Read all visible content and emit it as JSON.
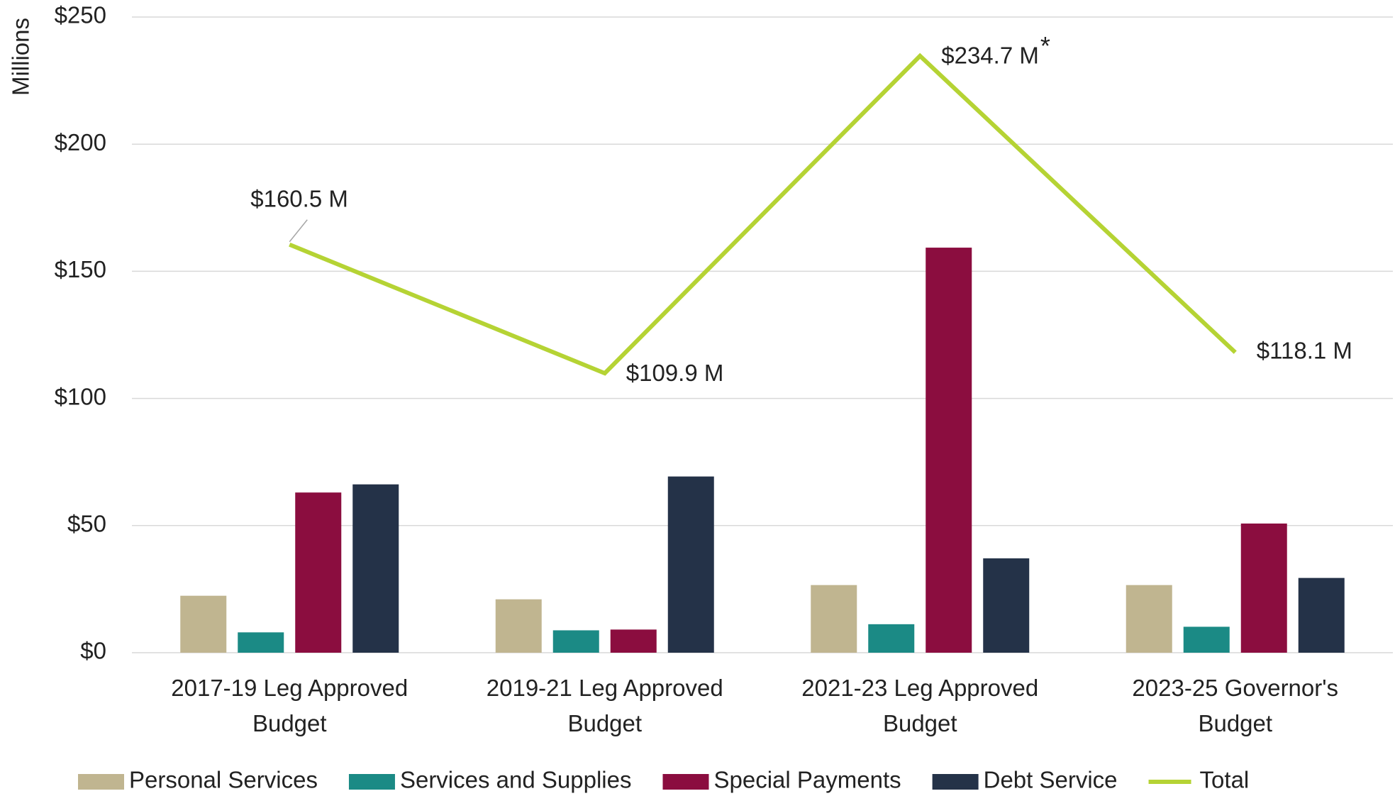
{
  "chart_data": {
    "type": "bar_line",
    "y_label": "Millions",
    "categories": [
      "2017-19 Leg Approved Budget",
      "2019-21 Leg Approved Budget",
      "2021-23 Leg Approved Budget",
      "2023-25 Governor's Budget"
    ],
    "series": [
      {
        "name": "Personal Services",
        "type": "bar",
        "color": "#c0b590",
        "values": [
          22.4,
          21,
          26.6,
          26.6
        ]
      },
      {
        "name": "Services and Supplies",
        "type": "bar",
        "color": "#1b8a85",
        "values": [
          8,
          8.8,
          11.2,
          10.2
        ]
      },
      {
        "name": "Special Payments",
        "type": "bar",
        "color": "#8b0d3f",
        "values": [
          63,
          9.1,
          159.3,
          50.8
        ]
      },
      {
        "name": "Debt Service",
        "type": "bar",
        "color": "#243248",
        "values": [
          66.2,
          69.3,
          37.1,
          29.4
        ]
      },
      {
        "name": "Total",
        "type": "line",
        "color": "#b5d334",
        "values": [
          160.5,
          109.9,
          234.7,
          118.1
        ],
        "value_labels": [
          "$160.5 M",
          "$109.9 M",
          "$234.7 M",
          "$118.1 M"
        ]
      }
    ],
    "annotations": [
      {
        "text": "*",
        "index": 2
      }
    ],
    "ylim": [
      0,
      250
    ],
    "yticks": [
      {
        "value": 0,
        "label": "$0"
      },
      {
        "value": 50,
        "label": "$50"
      },
      {
        "value": 100,
        "label": "$100"
      },
      {
        "value": 150,
        "label": "$150"
      },
      {
        "value": 200,
        "label": "$200"
      },
      {
        "value": 250,
        "label": "$250"
      }
    ],
    "grid": true,
    "legend": "bottom"
  }
}
